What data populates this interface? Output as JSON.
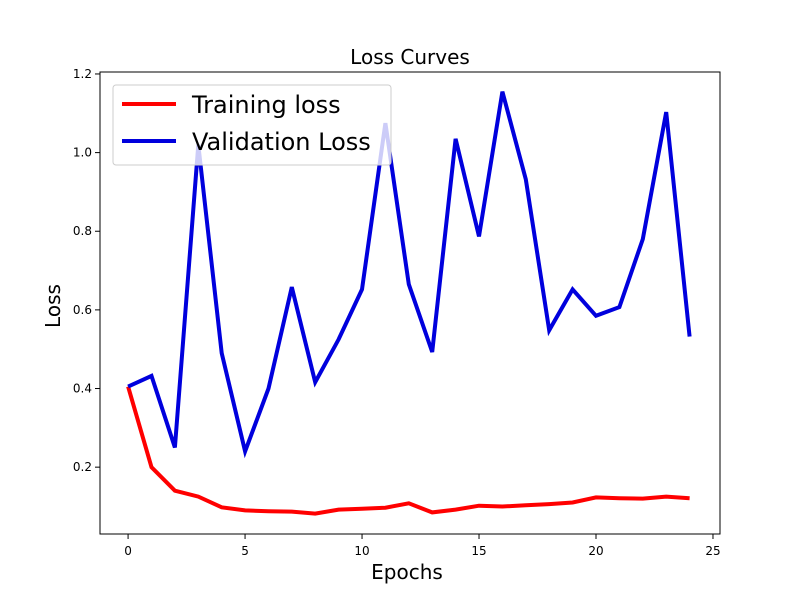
{
  "chart_data": {
    "type": "line",
    "title": "Loss Curves",
    "xlabel": "Epochs",
    "ylabel": "Loss",
    "xlim": [
      -1.2,
      25.3
    ],
    "ylim": [
      0.03,
      1.205
    ],
    "x_ticks": [
      0,
      5,
      10,
      15,
      20,
      25
    ],
    "y_ticks": [
      0.2,
      0.4,
      0.6,
      0.8,
      1.0,
      1.2
    ],
    "y_tick_labels": [
      "0.2",
      "0.4",
      "0.6",
      "0.8",
      "1.0",
      "1.2"
    ],
    "grid": false,
    "legend": "top-left",
    "x": [
      0,
      1,
      2,
      3,
      4,
      5,
      6,
      7,
      8,
      9,
      10,
      11,
      12,
      13,
      14,
      15,
      16,
      17,
      18,
      19,
      20,
      21,
      22,
      23,
      24
    ],
    "series": [
      {
        "name": "Training loss",
        "color": "#ff0000",
        "values": [
          0.405,
          0.2,
          0.14,
          0.125,
          0.098,
          0.09,
          0.088,
          0.087,
          0.082,
          0.092,
          0.094,
          0.097,
          0.108,
          0.085,
          0.092,
          0.102,
          0.1,
          0.103,
          0.106,
          0.11,
          0.123,
          0.121,
          0.12,
          0.125,
          0.121
        ]
      },
      {
        "name": "Validation Loss",
        "color": "#0000dd",
        "values": [
          0.405,
          0.432,
          0.25,
          1.02,
          0.49,
          0.24,
          0.4,
          0.658,
          0.416,
          0.525,
          0.652,
          1.075,
          0.665,
          0.493,
          1.035,
          0.787,
          1.155,
          0.932,
          0.548,
          0.652,
          0.585,
          0.607,
          0.78,
          1.103,
          0.532
        ]
      }
    ]
  }
}
